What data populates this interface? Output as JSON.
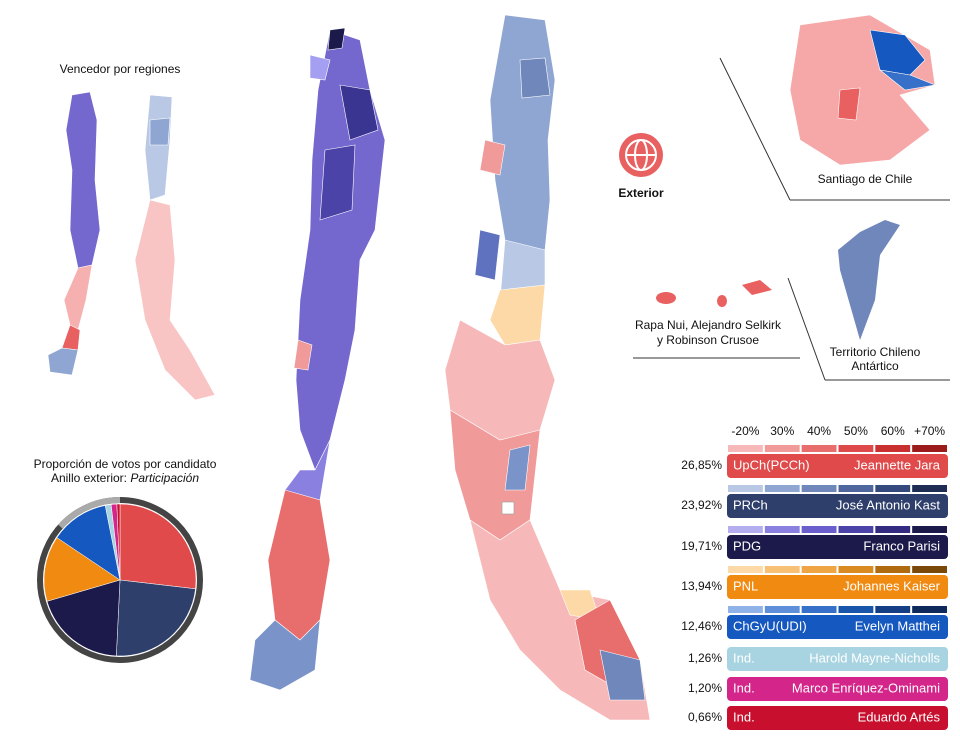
{
  "titles": {
    "regions": "Vencedor por regiones",
    "pie_line1": "Proporción de votos por candidato",
    "pie_line2_prefix": "Anillo exterior: ",
    "pie_line2_italic": "Participación"
  },
  "insets": {
    "exterior": "Exterior",
    "santiago": "Santiago de Chile",
    "islands_line1": "Rapa Nui, Alejandro Selkirk",
    "islands_line2": "y Robinson Crusoe",
    "antarctic_line1": "Territorio Chileno",
    "antarctic_line2": "Antártico"
  },
  "scale_labels": [
    "-20%",
    "30%",
    "40%",
    "50%",
    "60%",
    "+70%"
  ],
  "candidates": [
    {
      "share": {
        "value": 26.85,
        "label": "26,85%"
      },
      "party": "UpCh(PCCh)",
      "name": "Jeannette Jara",
      "color": "#e04a4a",
      "ramp": [
        "#f6b8b8",
        "#f09a9a",
        "#e86d6d",
        "#de4a4a",
        "#c93030",
        "#9c1c1c"
      ]
    },
    {
      "share": {
        "value": 23.92,
        "label": "23,92%"
      },
      "party": "PRCh",
      "name": "José Antonio Kast",
      "color": "#2e3f6b",
      "ramp": [
        "#b9c8e4",
        "#8fa6d2",
        "#6f87bb",
        "#4f679f",
        "#34497d",
        "#1f2d55"
      ]
    },
    {
      "share": {
        "value": 19.71,
        "label": "19,71%"
      },
      "party": "PDG",
      "name": "Franco Parisi",
      "color": "#1c1a4a",
      "ramp": [
        "#b4aef0",
        "#8a80e0",
        "#6a5fcc",
        "#4c43a8",
        "#332c80",
        "#1c1a4a"
      ]
    },
    {
      "share": {
        "value": 13.94,
        "label": "13,94%"
      },
      "party": "PNL",
      "name": "Johannes Kaiser",
      "color": "#f08a10",
      "ramp": [
        "#fcd9a6",
        "#f7c074",
        "#f0a545",
        "#d98a20",
        "#b06a10",
        "#7a4808"
      ]
    },
    {
      "share": {
        "value": 12.46,
        "label": "12,46%"
      },
      "party": "ChGyU(UDI)",
      "name": "Evelyn Matthei",
      "color": "#1558c0",
      "ramp": [
        "#8fb2e8",
        "#5f8fd8",
        "#3670c8",
        "#1a55ac",
        "#153f85",
        "#0e2a5c"
      ]
    },
    {
      "share": {
        "value": 1.26,
        "label": "1,26%"
      },
      "party": "Ind.",
      "name": "Harold Mayne-Nicholls",
      "color": "#a8d4e2"
    },
    {
      "share": {
        "value": 1.2,
        "label": "1,20%"
      },
      "party": "Ind.",
      "name": "Marco Enríquez-Ominami",
      "color": "#d4268a"
    },
    {
      "share": {
        "value": 0.66,
        "label": "0,66%"
      },
      "party": "Ind.",
      "name": "Eduardo Artés",
      "color": "#c8102e"
    }
  ]
}
